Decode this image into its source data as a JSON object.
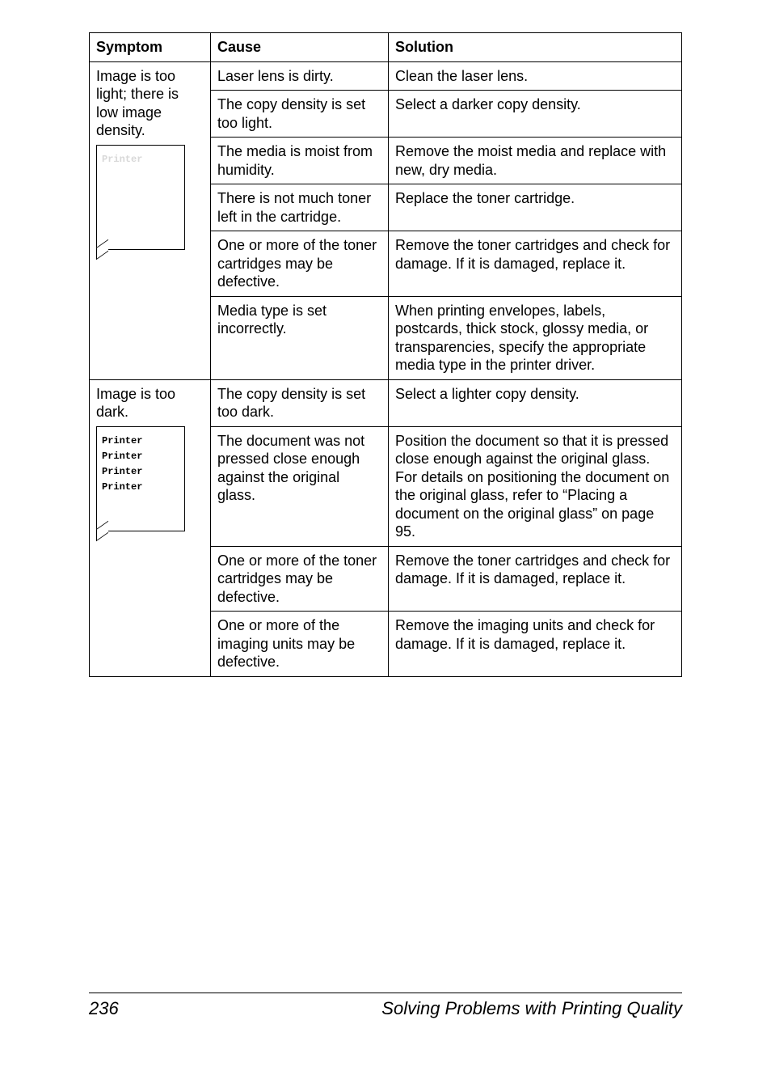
{
  "table": {
    "headers": {
      "symptom": "Symptom",
      "cause": "Cause",
      "solution": "Solution"
    },
    "group1": {
      "symptom_text": "Image is too light; there is low image density.",
      "box_lines": [
        "Printer"
      ],
      "rows": [
        {
          "cause": "Laser lens is dirty.",
          "solution": "Clean the laser lens."
        },
        {
          "cause": "The copy density is set too light.",
          "solution": "Select a darker copy density."
        },
        {
          "cause": "The media is moist from humidity.",
          "solution": "Remove the moist media and replace with new, dry media."
        },
        {
          "cause": "There is not much toner left in the cartridge.",
          "solution": "Replace the toner cartridge."
        },
        {
          "cause": "One or more of the toner cartridges may be defective.",
          "solution": "Remove the toner cartridges and check for damage. If it is damaged, replace it."
        },
        {
          "cause": "Media type is set incorrectly.",
          "solution": "When printing envelopes, labels, postcards, thick stock, glossy media, or transparencies, specify the appropriate media type in the printer driver."
        }
      ]
    },
    "group2": {
      "symptom_text": "Image is too dark.",
      "box_lines": [
        "Printer",
        "Printer",
        "Printer",
        "Printer"
      ],
      "rows": [
        {
          "cause": "The copy density is set too dark.",
          "solution": "Select a lighter copy density."
        },
        {
          "cause": "The document was not pressed close enough against the original glass.",
          "solution": "Position the document so that it is pressed close enough against the original glass. For details on positioning the document on the original glass, refer to “Placing a document on the original glass” on page 95."
        },
        {
          "cause": "One or more of the toner cartridges may be defective.",
          "solution": "Remove the toner cartridges and check for damage. If it is damaged, replace it."
        },
        {
          "cause": "One or more of the imaging units may be defective.",
          "solution": "Remove the imaging units and check for damage. If it is damaged, replace it."
        }
      ]
    }
  },
  "footer": {
    "page_number": "236",
    "title": "Solving Problems with Printing Quality"
  },
  "colors": {
    "text": "#000000",
    "background": "#ffffff",
    "light_ghost": "#d8d8d8",
    "border": "#000000"
  }
}
